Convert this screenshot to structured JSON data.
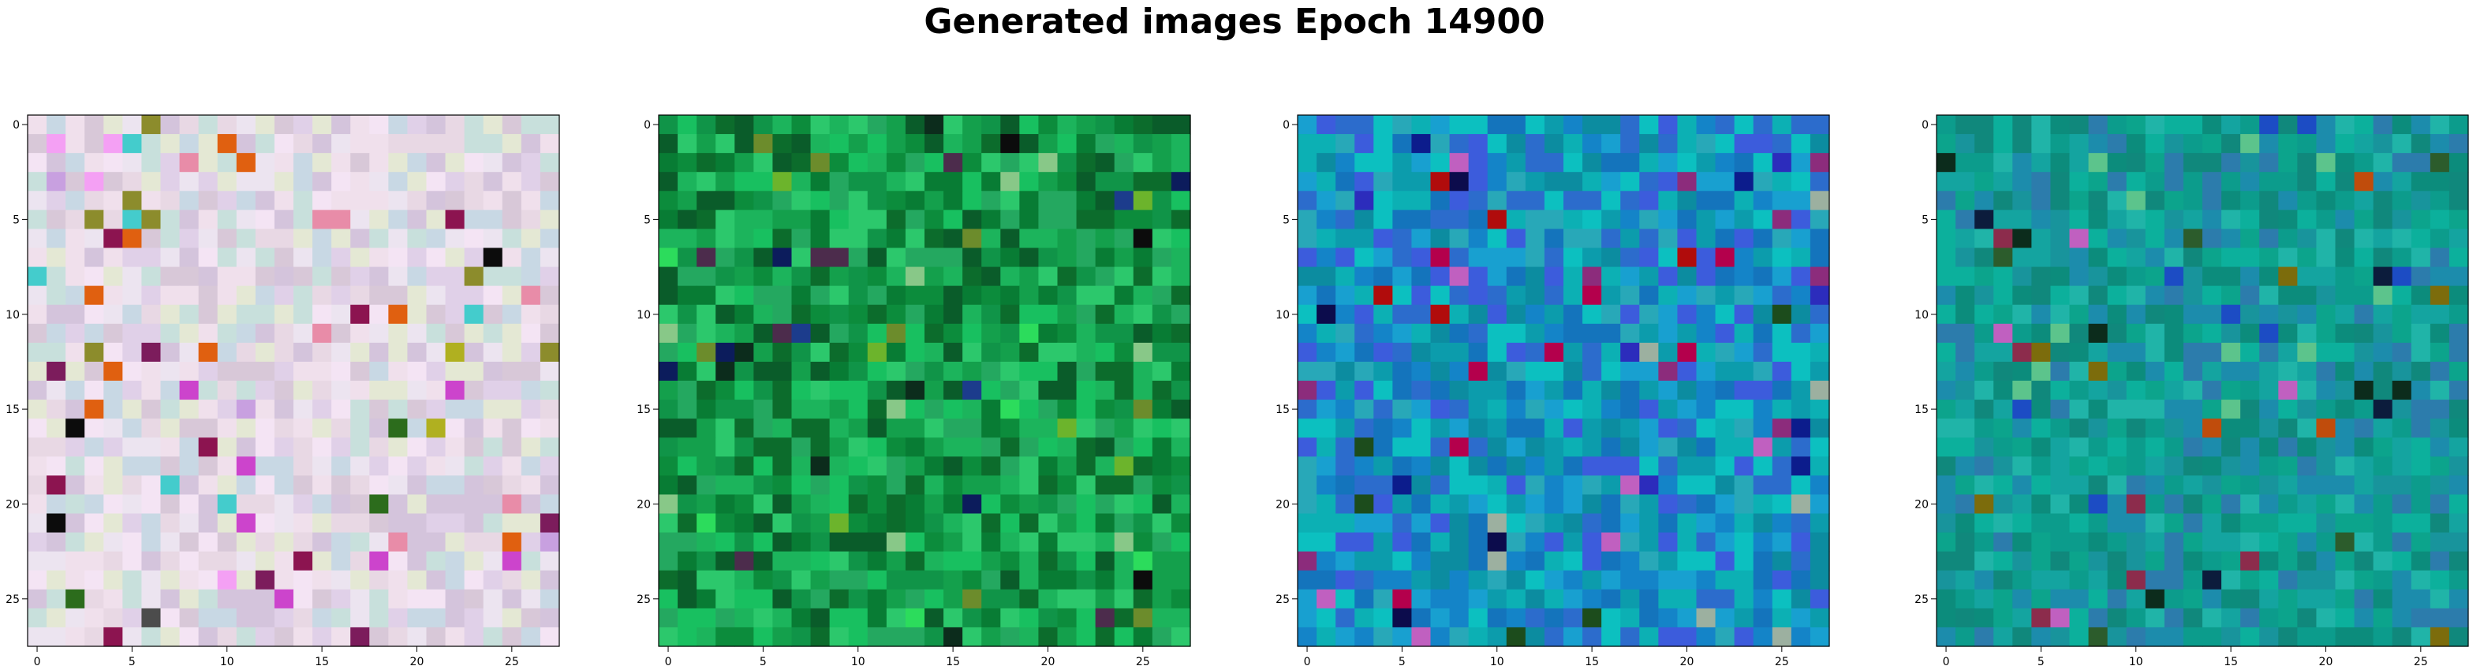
{
  "figure": {
    "title": "Generated images Epoch 14900"
  },
  "chart_data": [
    {
      "type": "heatmap",
      "rows": 28,
      "cols": 28,
      "xlim": [
        -0.5,
        27.5
      ],
      "ylim": [
        27.5,
        -0.5
      ],
      "xticks": [
        0,
        5,
        10,
        15,
        20,
        25
      ],
      "yticks": [
        0,
        5,
        10,
        15,
        20,
        25
      ],
      "palette": [
        "#e8d8e4",
        "#d8c8d8",
        "#f0e0ec",
        "#c8d8e4",
        "#e4e8d4",
        "#f4e4f4",
        "#d4c4dc",
        "#ece4f0",
        "#e0d0e8",
        "#c8e0dc"
      ],
      "accents": [
        "#8c1450",
        "#2c6c1c",
        "#0c0c0c",
        "#cc44cc",
        "#e88ca8",
        "#8c8c2c",
        "#c8a0e0",
        "#f4a0f4",
        "#e06010",
        "#b0b020",
        "#44cccc",
        "#4c4c4c",
        "#7c1c5c"
      ]
    },
    {
      "type": "heatmap",
      "rows": 28,
      "cols": 28,
      "xlim": [
        -0.5,
        27.5
      ],
      "ylim": [
        27.5,
        -0.5
      ],
      "xticks": [
        0,
        5,
        10,
        15,
        20,
        25
      ],
      "yticks": [
        0,
        5,
        10,
        15,
        20,
        25
      ],
      "palette": [
        "#0c8c3c",
        "#14a04c",
        "#0c6c2c",
        "#1cb45c",
        "#087c34",
        "#18c060",
        "#0a5c2a",
        "#24a860",
        "#109448",
        "#2cc86c"
      ],
      "accents": [
        "#0c2c1c",
        "#1c3c8c",
        "#6cb42c",
        "#0c0c0c",
        "#4c2c4c",
        "#88c888",
        "#0c1c5c",
        "#6c8c2c",
        "#2cdc5c"
      ]
    },
    {
      "type": "heatmap",
      "rows": 28,
      "cols": 28,
      "xlim": [
        -0.5,
        27.5
      ],
      "ylim": [
        27.5,
        -0.5
      ],
      "xticks": [
        0,
        5,
        10,
        15,
        20,
        25
      ],
      "yticks": [
        0,
        5,
        10,
        15,
        20,
        25
      ],
      "palette": [
        "#0c9cac",
        "#1484c8",
        "#0cb0b4",
        "#2c6ccc",
        "#18a0d0",
        "#0c8ca0",
        "#3c5cdc",
        "#0cc0c0",
        "#1474bc",
        "#28a8b8"
      ],
      "accents": [
        "#0c0c4c",
        "#b4004c",
        "#2c2cbc",
        "#c060c0",
        "#1c4c1c",
        "#0c1c8c",
        "#9cb0a0",
        "#8c2c7c",
        "#b00c0c"
      ]
    },
    {
      "type": "heatmap",
      "rows": 28,
      "cols": 28,
      "xlim": [
        -0.5,
        27.5
      ],
      "ylim": [
        27.5,
        -0.5
      ],
      "xticks": [
        0,
        5,
        10,
        15,
        20,
        25
      ],
      "yticks": [
        0,
        5,
        10,
        15,
        20,
        25
      ],
      "palette": [
        "#0c9c8c",
        "#14a4a0",
        "#0c8c7c",
        "#1c8cac",
        "#0cb09c",
        "#18949c",
        "#2c7cac",
        "#0ca48c",
        "#10887c",
        "#20b4a8"
      ],
      "accents": [
        "#0c2c1c",
        "#8c2c4c",
        "#c04c0c",
        "#c060c0",
        "#0c1c3c",
        "#7c6c0c",
        "#2c5c2c",
        "#1c4cc4",
        "#5cc48c"
      ]
    }
  ]
}
